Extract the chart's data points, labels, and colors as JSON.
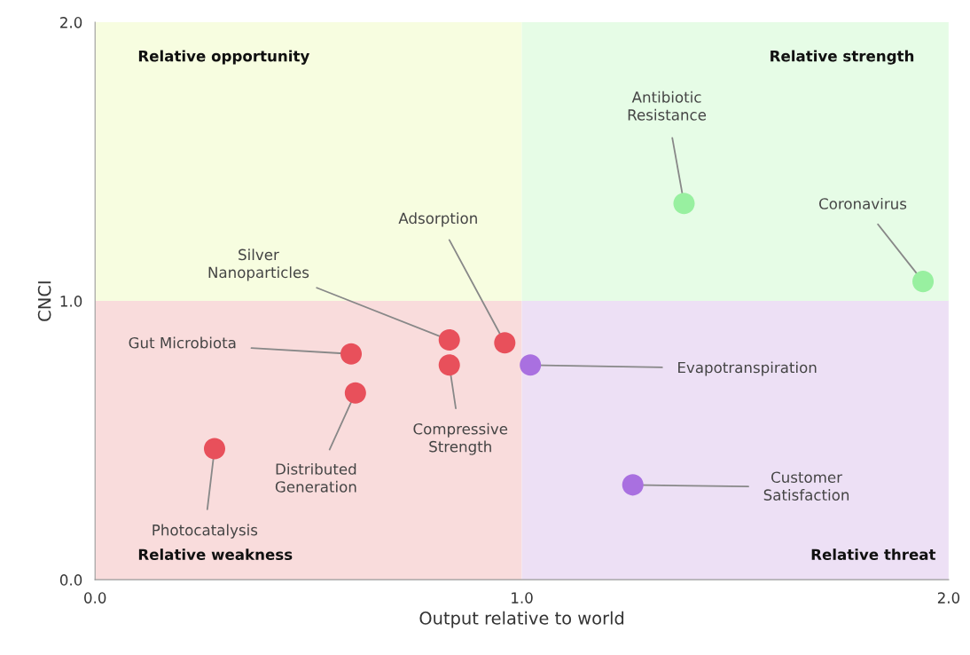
{
  "chart_data": {
    "type": "scatter",
    "xlabel": "Output relative to world",
    "ylabel": "CNCI",
    "xlim": [
      0,
      2
    ],
    "ylim": [
      0,
      2
    ],
    "xticks": [
      {
        "value": 0,
        "label": "0.0"
      },
      {
        "value": 1,
        "label": "1.0"
      },
      {
        "value": 2,
        "label": "2.0"
      }
    ],
    "yticks": [
      {
        "value": 0,
        "label": "0.0"
      },
      {
        "value": 1,
        "label": "1.0"
      },
      {
        "value": 2,
        "label": "2.0"
      }
    ],
    "grid": false,
    "marker": "circle",
    "x": [
      0.28,
      0.61,
      0.6,
      0.83,
      0.83,
      0.96,
      1.02,
      1.26,
      1.38,
      1.94
    ],
    "values": [
      0.47,
      0.67,
      0.81,
      0.86,
      0.77,
      0.85,
      0.77,
      0.34,
      1.35,
      1.07
    ],
    "colors": [
      "#e8505b",
      "#e8505b",
      "#e8505b",
      "#e8505b",
      "#e8505b",
      "#e8505b",
      "#a970e0",
      "#a970e0",
      "#98f0a0",
      "#98f0a0"
    ],
    "annotations": [
      {
        "text": "Photocatalysis",
        "x": 0.28,
        "y": 0.47
      },
      {
        "text": "Distributed\nGeneration",
        "x": 0.61,
        "y": 0.67
      },
      {
        "text": "Gut Microbiota",
        "x": 0.6,
        "y": 0.81
      },
      {
        "text": "Silver\nNanoparticles",
        "x": 0.83,
        "y": 0.86
      },
      {
        "text": "Compressive\nStrength",
        "x": 0.83,
        "y": 0.77
      },
      {
        "text": "Adsorption",
        "x": 0.96,
        "y": 0.85
      },
      {
        "text": "Evapotranspiration",
        "x": 1.02,
        "y": 0.77
      },
      {
        "text": "Customer\nSatisfaction",
        "x": 1.26,
        "y": 0.34
      },
      {
        "text": "Antibiotic\nResistance",
        "x": 1.38,
        "y": 1.35
      },
      {
        "text": "Coronavirus",
        "x": 1.94,
        "y": 1.07
      },
      "Relative opportunity",
      "Relative strength",
      "Relative weakness",
      "Relative threat"
    ]
  }
}
